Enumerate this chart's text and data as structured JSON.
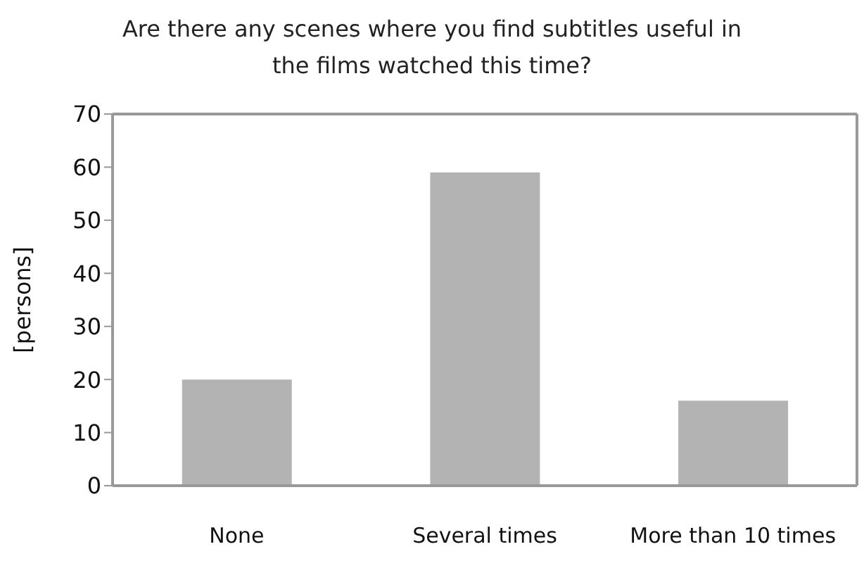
{
  "chart_data": {
    "type": "bar",
    "title": "Are there any scenes where you find subtitles useful in the films watched this time?",
    "ylabel": "[persons]",
    "categories": [
      "None",
      "Several times",
      "More than 10 times"
    ],
    "values": [
      20,
      59,
      16
    ],
    "color": "#b3b3b3",
    "ylim": [
      0,
      70
    ],
    "yticks": [
      0,
      10,
      20,
      30,
      40,
      50,
      60,
      70
    ],
    "grid": false,
    "legend": false
  }
}
